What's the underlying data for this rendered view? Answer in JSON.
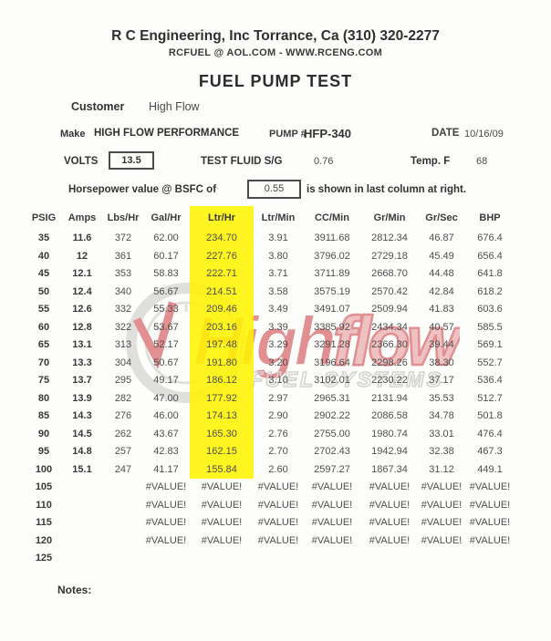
{
  "header": {
    "company": "R C Engineering, Inc  Torrance,  Ca  (310) 320-2277",
    "contact": "RCFUEL @ AOL.COM - WWW.RCENG.COM",
    "title": "FUEL PUMP TEST"
  },
  "info": {
    "customer_label": "Customer",
    "customer_value": "High Flow",
    "make_label": "Make",
    "make_value": "HIGH FLOW PERFORMANCE",
    "pump_label": "PUMP #",
    "pump_value": "HFP-340",
    "date_label": "DATE",
    "date_value": "10/16/09",
    "volts_label": "VOLTS",
    "volts_value": "13.5",
    "fluid_label": "TEST FLUID  S/G",
    "fluid_value": "0.76",
    "temp_label": "Temp. F",
    "temp_value": "68",
    "bsfc_prefix": "Horsepower value @  BSFC of",
    "bsfc_value": "0.55",
    "bsfc_suffix": "is shown in last column at right."
  },
  "watermark": {
    "brand_high": "High",
    "brand_flow": "flow",
    "subtitle": "FUEL SYSTEMS",
    "red": "#c8242b",
    "gray": "#c2c2c2"
  },
  "table": {
    "columns": [
      "PSIG",
      "Amps",
      "Lbs/Hr",
      "Gal/Hr",
      "Ltr/Hr",
      "Ltr/Min",
      "CC/Min",
      "Gr/Min",
      "Gr/Sec",
      "BHP"
    ],
    "highlight_column": "Ltr/Hr",
    "highlight_col_index": 4,
    "highlight_color": "#fff500",
    "rows": [
      {
        "highlight": true,
        "cells": [
          "35",
          "11.6",
          "372",
          "62.00",
          "234.70",
          "3.91",
          "3911.68",
          "2812.34",
          "46.87",
          "676.4"
        ]
      },
      {
        "highlight": true,
        "cells": [
          "40",
          "12",
          "361",
          "60.17",
          "227.76",
          "3.80",
          "3796.02",
          "2729.18",
          "45.49",
          "656.4"
        ]
      },
      {
        "highlight": true,
        "cells": [
          "45",
          "12.1",
          "353",
          "58.83",
          "222.71",
          "3.71",
          "3711.89",
          "2668.70",
          "44.48",
          "641.8"
        ]
      },
      {
        "highlight": true,
        "cells": [
          "50",
          "12.4",
          "340",
          "56.67",
          "214.51",
          "3.58",
          "3575.19",
          "2570.42",
          "42.84",
          "618.2"
        ]
      },
      {
        "highlight": true,
        "cells": [
          "55",
          "12.6",
          "332",
          "55.33",
          "209.46",
          "3.49",
          "3491.07",
          "2509.94",
          "41.83",
          "603.6"
        ]
      },
      {
        "highlight": true,
        "cells": [
          "60",
          "12.8",
          "322",
          "53.67",
          "203.16",
          "3.39",
          "3385.92",
          "2434.34",
          "40.57",
          "585.5"
        ]
      },
      {
        "highlight": true,
        "cells": [
          "65",
          "13.1",
          "313",
          "52.17",
          "197.48",
          "3.29",
          "3291.28",
          "2366.30",
          "39.44",
          "569.1"
        ]
      },
      {
        "highlight": true,
        "cells": [
          "70",
          "13.3",
          "304",
          "50.67",
          "191.80",
          "3.20",
          "3196.64",
          "2298.26",
          "38.30",
          "552.7"
        ]
      },
      {
        "highlight": true,
        "cells": [
          "75",
          "13.7",
          "295",
          "49.17",
          "186.12",
          "3.10",
          "3102.01",
          "2230.22",
          "37.17",
          "536.4"
        ]
      },
      {
        "highlight": true,
        "cells": [
          "80",
          "13.9",
          "282",
          "47.00",
          "177.92",
          "2.97",
          "2965.31",
          "2131.94",
          "35.53",
          "512.7"
        ]
      },
      {
        "highlight": true,
        "cells": [
          "85",
          "14.3",
          "276",
          "46.00",
          "174.13",
          "2.90",
          "2902.22",
          "2086.58",
          "34.78",
          "501.8"
        ]
      },
      {
        "highlight": true,
        "cells": [
          "90",
          "14.5",
          "262",
          "43.67",
          "165.30",
          "2.76",
          "2755.00",
          "1980.74",
          "33.01",
          "476.4"
        ]
      },
      {
        "highlight": true,
        "cells": [
          "95",
          "14.8",
          "257",
          "42.83",
          "162.15",
          "2.70",
          "2702.43",
          "1942.94",
          "32.38",
          "467.3"
        ]
      },
      {
        "highlight": true,
        "cells": [
          "100",
          "15.1",
          "247",
          "41.17",
          "155.84",
          "2.60",
          "2597.27",
          "1867.34",
          "31.12",
          "449.1"
        ]
      },
      {
        "highlight": false,
        "cells": [
          "105",
          "",
          "",
          "#VALUE!",
          "#VALUE!",
          "#VALUE!",
          "#VALUE!",
          "#VALUE!",
          "#VALUE!",
          "#VALUE!"
        ]
      },
      {
        "highlight": false,
        "cells": [
          "110",
          "",
          "",
          "#VALUE!",
          "#VALUE!",
          "#VALUE!",
          "#VALUE!",
          "#VALUE!",
          "#VALUE!",
          "#VALUE!"
        ]
      },
      {
        "highlight": false,
        "cells": [
          "115",
          "",
          "",
          "#VALUE!",
          "#VALUE!",
          "#VALUE!",
          "#VALUE!",
          "#VALUE!",
          "#VALUE!",
          "#VALUE!"
        ]
      },
      {
        "highlight": false,
        "cells": [
          "120",
          "",
          "",
          "#VALUE!",
          "#VALUE!",
          "#VALUE!",
          "#VALUE!",
          "#VALUE!",
          "#VALUE!",
          "#VALUE!"
        ]
      },
      {
        "highlight": false,
        "cells": [
          "125",
          "",
          "",
          "",
          "",
          "",
          "",
          "",
          "",
          ""
        ]
      }
    ]
  },
  "notes_label": "Notes:"
}
